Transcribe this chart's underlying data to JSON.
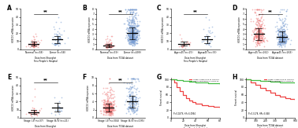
{
  "panel_labels": [
    "A",
    "B",
    "C",
    "D",
    "E",
    "F",
    "G",
    "H"
  ],
  "panel_A": {
    "bottom_title": "Data from Shanghai\nFirst People's Hospital",
    "groups": [
      "Normal (n=58)",
      "Tumor (n=58)"
    ],
    "colors": [
      "#F08080",
      "#7B9FD4"
    ],
    "ylabel": "HOXC10 mRNA expression",
    "significance": "**",
    "ylim": [
      0,
      50
    ],
    "means": [
      7,
      12
    ],
    "stds": [
      2.5,
      4
    ],
    "ns": [
      58,
      58
    ]
  },
  "panel_B": {
    "bottom_title": "Data from TCGA dataset",
    "groups": [
      "Normal (n=59)",
      "Tumor (n=499)"
    ],
    "colors": [
      "#F08080",
      "#7B9FD4"
    ],
    "ylabel": "HOXC10 mRNA expression",
    "significance": "**",
    "ylim": [
      0,
      8
    ],
    "means": [
      0.8,
      3.2
    ],
    "stds": [
      0.3,
      1.2
    ],
    "ns": [
      59,
      499
    ]
  },
  "panel_C": {
    "bottom_title": "Data from Shanghai\nFirst People's Hospital",
    "groups": [
      "Age<45 (n=25)",
      "Age≥45 (n=33)"
    ],
    "colors": [
      "#F08080",
      "#7B9FD4"
    ],
    "ylabel": "HOXC10 mRNA expression",
    "significance": "**",
    "ylim": [
      0,
      50
    ],
    "means": [
      7,
      12
    ],
    "stds": [
      2.5,
      4
    ],
    "ns": [
      25,
      33
    ]
  },
  "panel_D": {
    "bottom_title": "Data from TCGA dataset",
    "groups": [
      "Age<45 (n=261)",
      "Age≥45 (n=263)"
    ],
    "colors": [
      "#F08080",
      "#7B9FD4"
    ],
    "ylabel": "HOXC10 mRNA expression",
    "significance": "**",
    "ylim": [
      0,
      8
    ],
    "means": [
      3.0,
      2.5
    ],
    "stds": [
      1.2,
      1.0
    ],
    "ns": [
      261,
      263
    ]
  },
  "panel_E": {
    "bottom_title": "Data from Shanghai\nFirst People's Hospital",
    "groups": [
      "Stage I-II (n=37)",
      "Stage III-IV (n=21)"
    ],
    "colors": [
      "#F08080",
      "#7B9FD4"
    ],
    "ylabel": "HOXC10 mRNA expression",
    "significance": "**",
    "ylim": [
      0,
      50
    ],
    "means": [
      7,
      13
    ],
    "stds": [
      2.5,
      5
    ],
    "ns": [
      37,
      21
    ]
  },
  "panel_F": {
    "bottom_title": "Data from TCGA dataset",
    "groups": [
      "Stage I-II (n=304)",
      "Stage III-IV (n=195)"
    ],
    "colors": [
      "#F08080",
      "#7B9FD4"
    ],
    "ylabel": "HOXC10 mRNA expression",
    "significance": "**",
    "ylim": [
      0,
      10
    ],
    "means": [
      2.5,
      4.0
    ],
    "stds": [
      1.0,
      1.5
    ],
    "ns": [
      304,
      195
    ]
  },
  "panel_G": {
    "bottom_title": "Data from Shanghai\nFirst People's Hospital",
    "xlabel": "Survival time (months)",
    "ylabel": "Percent survival",
    "legend": [
      "Higher expression of HOXC10",
      "Lower expression of HOXC10"
    ],
    "legend_colors": [
      "#EE4444",
      "#44BB44"
    ],
    "stat_text": "P=0.0279, HR=5.0994",
    "xlim": [
      0,
      80
    ],
    "ylim": [
      0,
      105
    ]
  },
  "panel_H": {
    "bottom_title": "Data from TCGA dataset",
    "xlabel": "Survival time (days)",
    "ylabel": "Percent survival",
    "legend": [
      "Higher expression of HOXC10",
      "Lower expression of HOXC10"
    ],
    "legend_colors": [
      "#EE4444",
      "#44BB44"
    ],
    "stat_text": "P=0.3178, HR=3.848",
    "xlim": [
      0,
      500
    ],
    "ylim": [
      0,
      105
    ]
  },
  "background_color": "#FFFFFF",
  "scatter_alpha": 0.55,
  "scatter_size": 1.5
}
